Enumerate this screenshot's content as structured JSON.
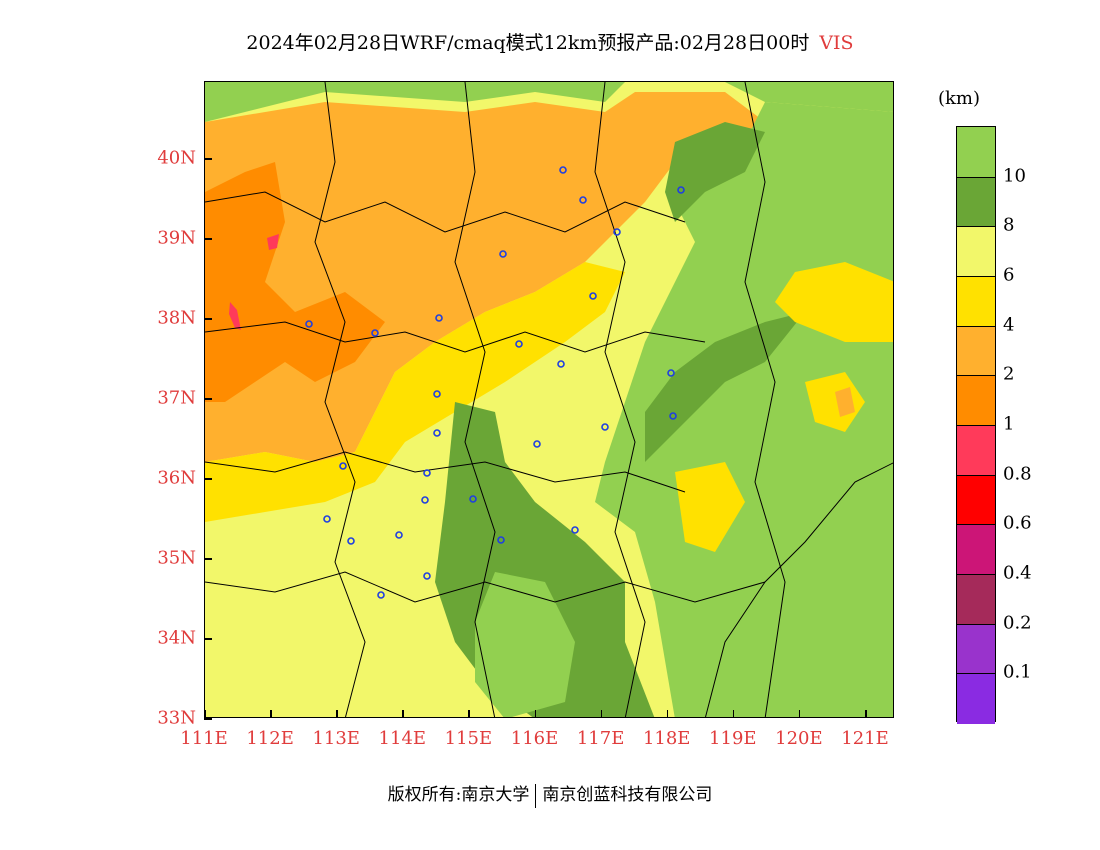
{
  "header": {
    "title": "2024年02月28日WRF/cmaq模式12km预报产品:02月28日00时",
    "variable": "VIS"
  },
  "axes": {
    "y_ticks": [
      "40N",
      "39N",
      "38N",
      "37N",
      "36N",
      "35N",
      "34N",
      "33N"
    ],
    "x_ticks": [
      "111E",
      "112E",
      "113E",
      "114E",
      "115E",
      "116E",
      "117E",
      "118E",
      "119E",
      "120E",
      "121E"
    ]
  },
  "legend": {
    "unit": "(km)",
    "labels": [
      "10",
      "8",
      "6",
      "4",
      "2",
      "1",
      "0.8",
      "0.6",
      "0.4",
      "0.2",
      "0.1"
    ],
    "colors": [
      "#92d050",
      "#6aa636",
      "#f2f76a",
      "#ffe100",
      "#ffb02e",
      "#ff8c00",
      "#ff3a5a",
      "#ff0000",
      "#cc1577",
      "#a52a5a",
      "#9933cc",
      "#8a2be2"
    ]
  },
  "footer": {
    "copyright": "版权所有:南京大学",
    "company": "南京创蓝科技有限公司"
  }
}
